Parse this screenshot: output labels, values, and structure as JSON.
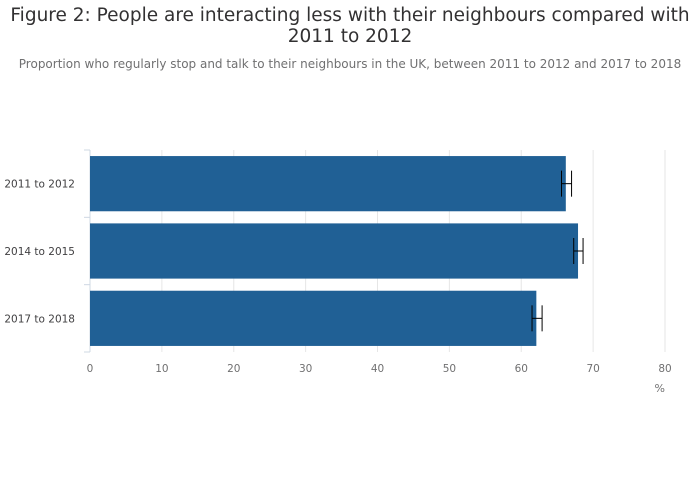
{
  "chart_data": {
    "type": "bar",
    "orientation": "horizontal",
    "title": "Figure 2: People are interacting less with their neighbours compared with\n2011 to 2012",
    "subtitle": "Proportion who regularly stop and talk to their neighbours in the UK, between 2011 to 2012 and 2017 to 2018",
    "categories": [
      "2011 to 2012",
      "2014 to 2015",
      "2017 to 2018"
    ],
    "values": [
      66.2,
      67.9,
      62.1
    ],
    "error_low": [
      65.6,
      67.3,
      61.5
    ],
    "error_high": [
      67.0,
      68.6,
      62.9
    ],
    "xlabel": "%",
    "xlim": [
      0,
      80
    ],
    "xticks": [
      "0",
      "10",
      "20",
      "30",
      "40",
      "50",
      "60",
      "70",
      "80"
    ],
    "grid": true,
    "bar_color": "#206095"
  }
}
